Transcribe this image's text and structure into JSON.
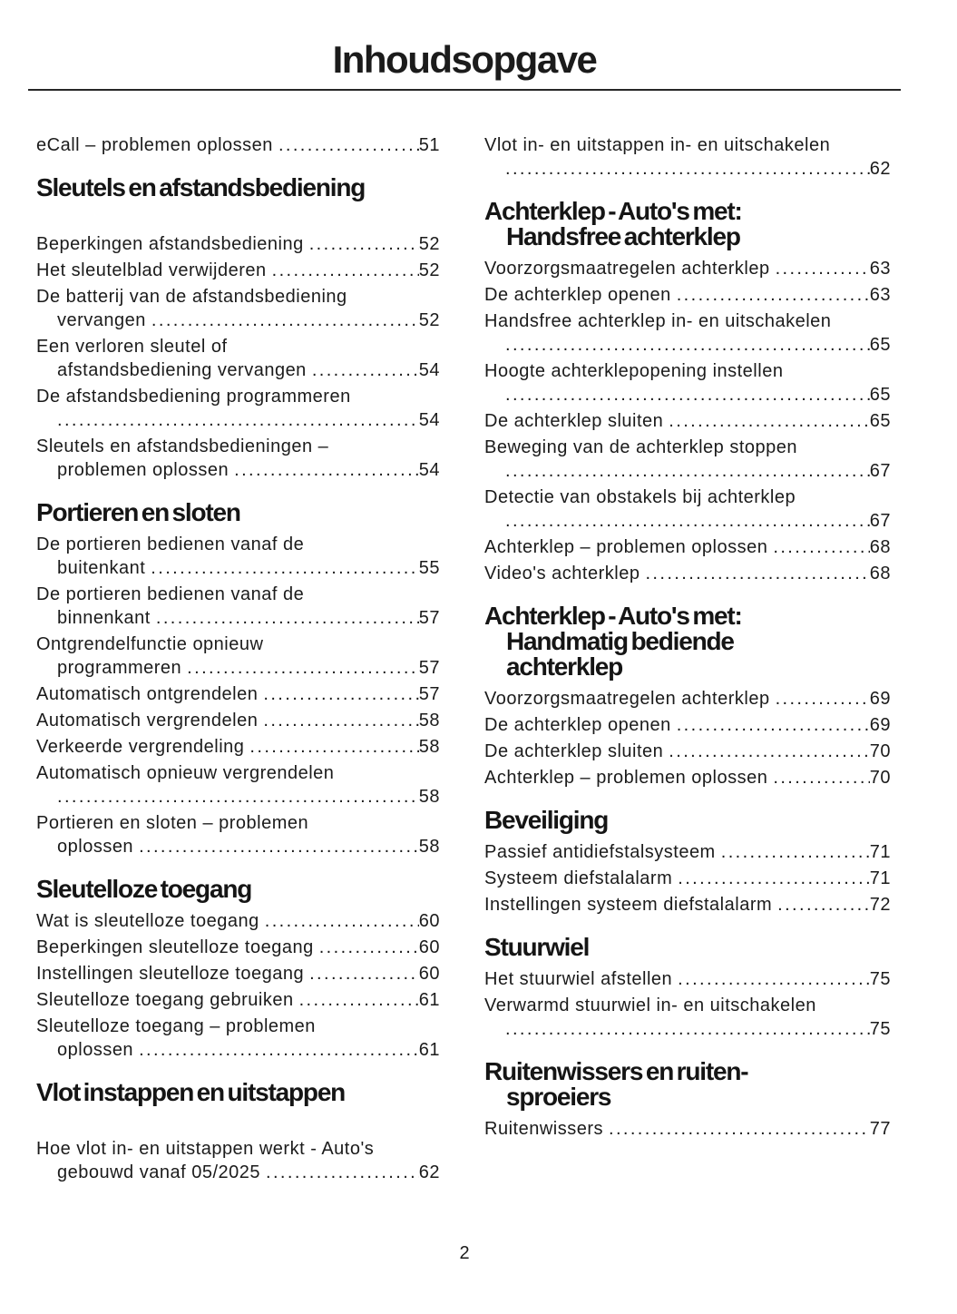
{
  "page": {
    "title": "Inhoudsopgave",
    "page_number": "2",
    "text_color": "#1b1b1b",
    "rule_color": "#262626"
  },
  "columns": [
    {
      "sections": [
        {
          "heading_lines": [],
          "extra_gap": false,
          "entries": [
            {
              "lines": [
                "eCall – problemen oplossen"
              ],
              "page": "51"
            }
          ]
        },
        {
          "heading_lines": [
            "Sleutels en afstandsbediening"
          ],
          "extra_gap": true,
          "entries": [
            {
              "lines": [
                "Beperkingen afstandsbediening"
              ],
              "page": "52"
            },
            {
              "lines": [
                "Het sleutelblad verwijderen"
              ],
              "page": "52"
            },
            {
              "lines": [
                "De batterij van de afstandsbediening",
                "vervangen"
              ],
              "page": "52"
            },
            {
              "lines": [
                "Een verloren sleutel of",
                "afstandsbediening vervangen"
              ],
              "page": "54"
            },
            {
              "lines": [
                "De afstandsbediening programmeren",
                ""
              ],
              "page": "54"
            },
            {
              "lines": [
                "Sleutels en afstandsbedieningen –",
                "problemen oplossen"
              ],
              "page": "54"
            }
          ]
        },
        {
          "heading_lines": [
            "Portieren en sloten"
          ],
          "extra_gap": false,
          "entries": [
            {
              "lines": [
                "De portieren bedienen vanaf de",
                "buitenkant"
              ],
              "page": "55"
            },
            {
              "lines": [
                "De portieren bedienen vanaf de",
                "binnenkant"
              ],
              "page": "57"
            },
            {
              "lines": [
                "Ontgrendelfunctie opnieuw",
                "programmeren"
              ],
              "page": "57"
            },
            {
              "lines": [
                "Automatisch ontgrendelen"
              ],
              "page": "57"
            },
            {
              "lines": [
                "Automatisch vergrendelen"
              ],
              "page": "58"
            },
            {
              "lines": [
                "Verkeerde vergrendeling"
              ],
              "page": "58"
            },
            {
              "lines": [
                "Automatisch opnieuw vergrendelen",
                ""
              ],
              "page": "58"
            },
            {
              "lines": [
                "Portieren en sloten – problemen",
                "oplossen"
              ],
              "page": "58"
            }
          ]
        },
        {
          "heading_lines": [
            "Sleutelloze toegang"
          ],
          "extra_gap": false,
          "entries": [
            {
              "lines": [
                "Wat is sleutelloze toegang"
              ],
              "page": "60"
            },
            {
              "lines": [
                "Beperkingen sleutelloze toegang"
              ],
              "page": "60"
            },
            {
              "lines": [
                "Instellingen sleutelloze toegang"
              ],
              "page": "60"
            },
            {
              "lines": [
                "Sleutelloze toegang gebruiken"
              ],
              "page": "61"
            },
            {
              "lines": [
                "Sleutelloze toegang – problemen",
                "oplossen"
              ],
              "page": "61"
            }
          ]
        },
        {
          "heading_lines": [
            "Vlot instappen en uitstappen"
          ],
          "extra_gap": true,
          "entries": [
            {
              "lines": [
                "Hoe vlot in- en uitstappen werkt - Auto's",
                "gebouwd vanaf 05/2025"
              ],
              "page": "62"
            }
          ]
        }
      ]
    },
    {
      "sections": [
        {
          "heading_lines": [],
          "extra_gap": false,
          "entries": [
            {
              "lines": [
                "Vlot in- en uitstappen in- en uitschakelen",
                ""
              ],
              "page": "62"
            }
          ]
        },
        {
          "heading_lines": [
            "Achterklep - Auto's met:",
            "Handsfree achterklep"
          ],
          "extra_gap": false,
          "entries": [
            {
              "lines": [
                "Voorzorgsmaatregelen achterklep"
              ],
              "page": "63"
            },
            {
              "lines": [
                "De achterklep openen"
              ],
              "page": "63"
            },
            {
              "lines": [
                "Handsfree achterklep in- en uitschakelen",
                ""
              ],
              "page": "65"
            },
            {
              "lines": [
                "Hoogte achterklepopening instellen",
                ""
              ],
              "page": "65"
            },
            {
              "lines": [
                "De achterklep sluiten"
              ],
              "page": "65"
            },
            {
              "lines": [
                "Beweging van de achterklep stoppen",
                ""
              ],
              "page": "67"
            },
            {
              "lines": [
                "Detectie van obstakels bij achterklep",
                ""
              ],
              "page": "67"
            },
            {
              "lines": [
                "Achterklep – problemen oplossen"
              ],
              "page": "68"
            },
            {
              "lines": [
                "Video's achterklep"
              ],
              "page": "68"
            }
          ]
        },
        {
          "heading_lines": [
            "Achterklep - Auto's met:",
            "Handmatig bediende",
            "achterklep"
          ],
          "extra_gap": false,
          "entries": [
            {
              "lines": [
                "Voorzorgsmaatregelen achterklep"
              ],
              "page": "69"
            },
            {
              "lines": [
                "De achterklep openen"
              ],
              "page": "69"
            },
            {
              "lines": [
                "De achterklep sluiten"
              ],
              "page": "70"
            },
            {
              "lines": [
                "Achterklep – problemen oplossen"
              ],
              "page": "70"
            }
          ]
        },
        {
          "heading_lines": [
            "Beveiliging"
          ],
          "extra_gap": false,
          "entries": [
            {
              "lines": [
                "Passief antidiefstalsysteem"
              ],
              "page": "71"
            },
            {
              "lines": [
                "Systeem diefstalalarm"
              ],
              "page": "71"
            },
            {
              "lines": [
                "Instellingen systeem diefstalalarm"
              ],
              "page": "72"
            }
          ]
        },
        {
          "heading_lines": [
            "Stuurwiel"
          ],
          "extra_gap": false,
          "entries": [
            {
              "lines": [
                "Het stuurwiel afstellen"
              ],
              "page": "75"
            },
            {
              "lines": [
                "Verwarmd stuurwiel in- en uitschakelen",
                ""
              ],
              "page": "75"
            }
          ]
        },
        {
          "heading_lines": [
            "Ruitenwissers en ruiten-",
            "sproeiers"
          ],
          "extra_gap": false,
          "entries": [
            {
              "lines": [
                "Ruitenwissers"
              ],
              "page": "77"
            }
          ]
        }
      ]
    }
  ]
}
